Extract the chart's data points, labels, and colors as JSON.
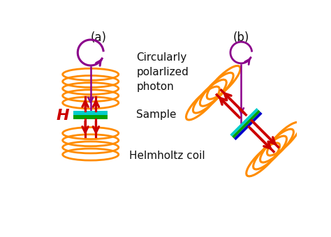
{
  "label_a": "(a)",
  "label_b": "(b)",
  "label_circ": "Circularly\npolarlized\nphoton",
  "label_sample": "Sample",
  "label_helmholtz": "Helmholtz coil",
  "label_H": "H",
  "orange_color": "#FF8C00",
  "purple_color": "#8B008B",
  "red_color": "#CC0000",
  "green_color": "#00A000",
  "teal_color": "#00AAAA",
  "cyan_color": "#00CCCC",
  "blue_color": "#0000CC",
  "bg_color": "#FFFFFF",
  "text_color": "#111111",
  "figsize": [
    4.74,
    3.4
  ],
  "dpi": 100
}
